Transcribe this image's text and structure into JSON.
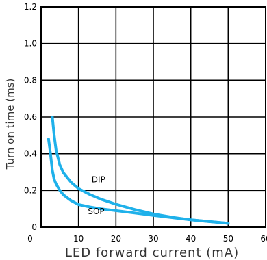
{
  "chart_data": {
    "type": "line",
    "xlabel": "LED forward current (mA)",
    "ylabel": "Turn on time (ms)",
    "xlim": [
      0,
      60
    ],
    "ylim": [
      0,
      1.2
    ],
    "x_ticks": [
      0,
      10,
      20,
      30,
      40,
      50,
      60
    ],
    "y_ticks": [
      0,
      0.2,
      0.4,
      0.6,
      0.8,
      1.0,
      1.2
    ],
    "x_tick_labels": [
      "0",
      "10",
      "20",
      "30",
      "40",
      "50",
      "60"
    ],
    "y_tick_labels": [
      "0",
      "0.2",
      "0.4",
      "0.6",
      "0.8",
      "1.0",
      "1.2"
    ],
    "grid": true,
    "line_color": "#1fb1ea",
    "series": [
      {
        "name": "DIP",
        "label_at": [
          13.5,
          0.245
        ],
        "x": [
          3.0,
          3.5,
          4.0,
          5.0,
          6.0,
          8.0,
          10.0,
          13.0,
          16.0,
          20.0,
          25.0,
          30.0,
          35.0,
          40.0,
          45.0,
          50.0
        ],
        "y": [
          0.6,
          0.5,
          0.42,
          0.34,
          0.295,
          0.245,
          0.21,
          0.178,
          0.152,
          0.125,
          0.096,
          0.072,
          0.054,
          0.04,
          0.03,
          0.021
        ]
      },
      {
        "name": "SOP",
        "label_at": [
          12.5,
          0.07
        ],
        "x": [
          2.0,
          2.5,
          3.0,
          3.5,
          4.0,
          5.0,
          6.0,
          8.0,
          10.0,
          13.0,
          16.0,
          20.0,
          25.0,
          30.0,
          35.0,
          40.0,
          45.0,
          50.0
        ],
        "y": [
          0.48,
          0.4,
          0.31,
          0.26,
          0.235,
          0.2,
          0.175,
          0.145,
          0.123,
          0.11,
          0.1,
          0.09,
          0.077,
          0.064,
          0.052,
          0.04,
          0.03,
          0.021
        ]
      }
    ]
  }
}
